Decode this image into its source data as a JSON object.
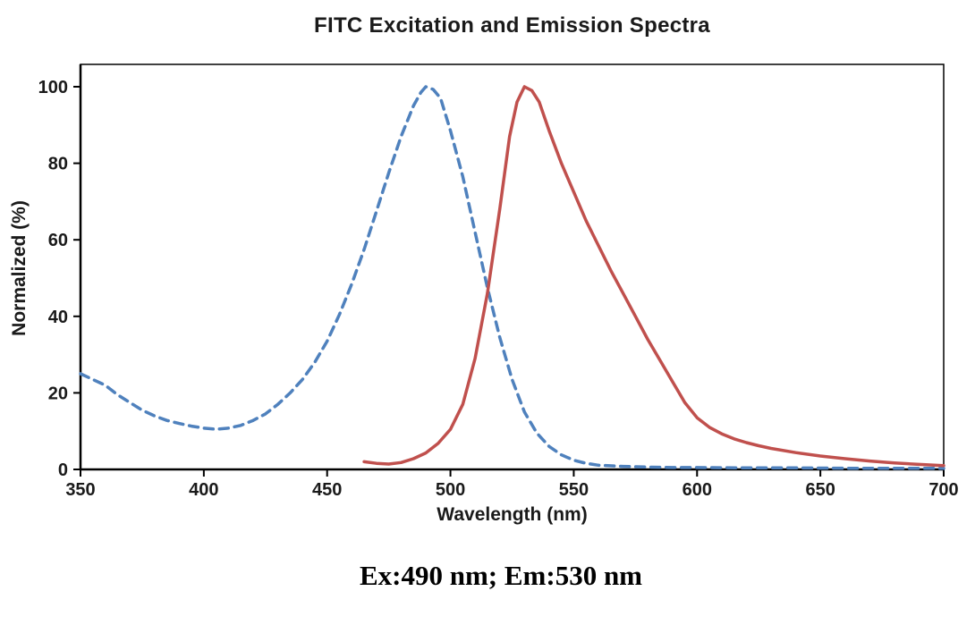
{
  "page": {
    "title": "FITC Excitation and Emission Spectra",
    "caption": "Ex:490 nm; Em:530 nm"
  },
  "chart_data": {
    "type": "line",
    "title": "FITC Excitation and Emission Spectra",
    "xlabel": "Wavelength (nm)",
    "ylabel": "Normalized (%)",
    "xlim": [
      350,
      700
    ],
    "ylim": [
      0,
      100
    ],
    "xticks": [
      350,
      400,
      450,
      500,
      550,
      600,
      650,
      700
    ],
    "yticks": [
      0,
      20,
      40,
      60,
      80,
      100
    ],
    "grid": false,
    "legend": "none",
    "annotation": "Ex:490 nm; Em:530 nm",
    "axis_color": "#000000",
    "series": [
      {
        "name": "Excitation",
        "color": "#4f81bd",
        "style": "dashed",
        "peak_nm": 490,
        "x": [
          350,
          355,
          360,
          365,
          370,
          375,
          380,
          385,
          390,
          395,
          400,
          405,
          410,
          415,
          420,
          425,
          430,
          435,
          440,
          445,
          450,
          455,
          460,
          465,
          470,
          475,
          480,
          485,
          488,
          490,
          493,
          496,
          500,
          505,
          510,
          515,
          520,
          525,
          530,
          535,
          540,
          545,
          550,
          555,
          560,
          570,
          580,
          590,
          600,
          620,
          640,
          660,
          680,
          700
        ],
        "y": [
          25,
          23.5,
          22,
          19.5,
          17.5,
          15.5,
          14,
          12.8,
          12,
          11.3,
          10.8,
          10.5,
          10.8,
          11.5,
          12.8,
          14.5,
          17,
          20,
          23.5,
          28,
          33.5,
          40.5,
          48.5,
          57.5,
          67.5,
          77.5,
          87,
          95,
          98.5,
          100,
          99.3,
          97,
          88.5,
          76.5,
          62,
          47.5,
          34.5,
          23.5,
          15,
          9.5,
          6,
          3.8,
          2.4,
          1.6,
          1.1,
          0.8,
          0.6,
          0.5,
          0.5,
          0.4,
          0.4,
          0.3,
          0.3,
          0.3
        ]
      },
      {
        "name": "Emission",
        "color": "#c0504d",
        "style": "solid",
        "peak_nm": 530,
        "x": [
          465,
          470,
          475,
          480,
          485,
          490,
          495,
          500,
          505,
          510,
          515,
          520,
          524,
          527,
          530,
          533,
          536,
          540,
          545,
          550,
          555,
          560,
          565,
          570,
          575,
          580,
          585,
          590,
          595,
          600,
          605,
          610,
          615,
          620,
          625,
          630,
          640,
          650,
          660,
          670,
          680,
          690,
          700
        ],
        "y": [
          2,
          1.6,
          1.4,
          1.8,
          2.8,
          4.3,
          6.8,
          10.5,
          17,
          29,
          46,
          68,
          87,
          96,
          100,
          99,
          96,
          88.5,
          80,
          72.5,
          65,
          58.5,
          52,
          46,
          40,
          34,
          28.5,
          23,
          17.5,
          13.5,
          11,
          9.3,
          8,
          7,
          6.2,
          5.5,
          4.4,
          3.5,
          2.8,
          2.2,
          1.7,
          1.3,
          1
        ]
      }
    ]
  }
}
